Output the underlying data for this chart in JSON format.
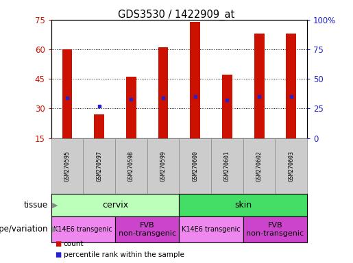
{
  "title": "GDS3530 / 1422909_at",
  "samples": [
    "GSM270595",
    "GSM270597",
    "GSM270598",
    "GSM270599",
    "GSM270600",
    "GSM270601",
    "GSM270602",
    "GSM270603"
  ],
  "counts": [
    60,
    27,
    46,
    61,
    74,
    47,
    68,
    68
  ],
  "percentile_ranks": [
    34,
    27,
    33,
    34,
    35,
    32,
    35,
    35
  ],
  "ylim_left": [
    15,
    75
  ],
  "yticks_left": [
    15,
    30,
    45,
    60,
    75
  ],
  "ylim_right": [
    0,
    100
  ],
  "yticks_right": [
    0,
    25,
    50,
    75,
    100
  ],
  "bar_color": "#cc1100",
  "dot_color": "#2222cc",
  "bar_width": 0.32,
  "tissue_colors": [
    "#bbffbb",
    "#44dd66"
  ],
  "tissue_labels": [
    "cervix",
    "skin"
  ],
  "tissue_ranges": [
    [
      0,
      3
    ],
    [
      4,
      7
    ]
  ],
  "geno_colors_light": "#ee88ee",
  "geno_colors_dark": "#cc44cc",
  "geno_labels": [
    "K14E6 transgenic",
    "FVB\nnon-transgenic",
    "K14E6 transgenic",
    "FVB\nnon-transgenic"
  ],
  "geno_ranges": [
    [
      0,
      1
    ],
    [
      2,
      3
    ],
    [
      4,
      5
    ],
    [
      6,
      7
    ]
  ],
  "geno_small": [
    true,
    false,
    true,
    false
  ],
  "legend_items": [
    {
      "label": "count",
      "color": "#cc1100"
    },
    {
      "label": "percentile rank within the sample",
      "color": "#2222cc"
    }
  ],
  "tick_color_left": "#cc1100",
  "tick_color_right": "#2222cc"
}
